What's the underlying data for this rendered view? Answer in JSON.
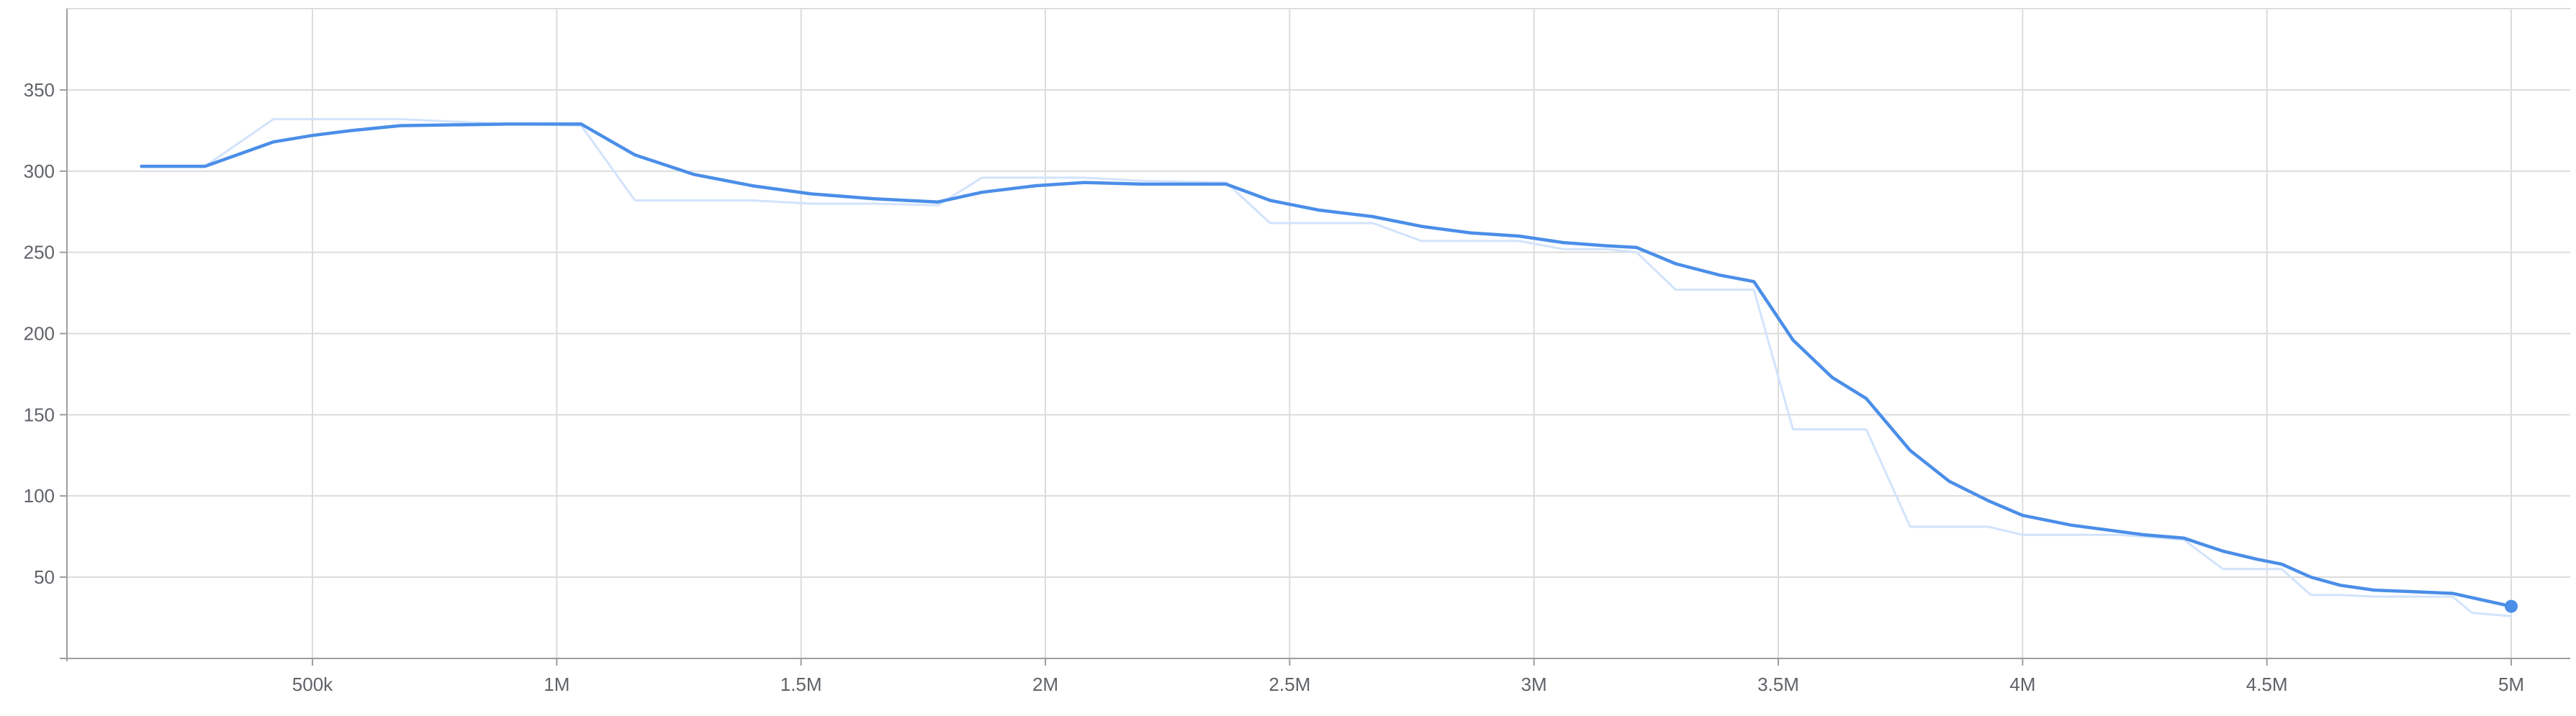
{
  "chart_data": {
    "type": "line",
    "title": "",
    "xlabel": "",
    "ylabel": "",
    "xlim": [
      -500000,
      5130000
    ],
    "ylim": [
      -5,
      400
    ],
    "grid": true,
    "legend": "none",
    "x_ticks": [
      {
        "value": 500000,
        "label": "500k"
      },
      {
        "value": 1000000,
        "label": "1M"
      },
      {
        "value": 1500000,
        "label": "1.5M"
      },
      {
        "value": 2000000,
        "label": "2M"
      },
      {
        "value": 2500000,
        "label": "2.5M"
      },
      {
        "value": 3000000,
        "label": "3M"
      },
      {
        "value": 3500000,
        "label": "3.5M"
      },
      {
        "value": 4000000,
        "label": "4M"
      },
      {
        "value": 4500000,
        "label": "4.5M"
      },
      {
        "value": 5000000,
        "label": "5M"
      }
    ],
    "y_ticks": [
      {
        "value": 50,
        "label": "50"
      },
      {
        "value": 100,
        "label": "100"
      },
      {
        "value": 150,
        "label": "150"
      },
      {
        "value": 200,
        "label": "200"
      },
      {
        "value": 250,
        "label": "250"
      },
      {
        "value": 300,
        "label": "300"
      },
      {
        "value": 350,
        "label": "350"
      }
    ],
    "colors": {
      "smoothed": "#4a8ee8",
      "raw": "#d2e3fc",
      "grid": "#dcdcdc",
      "axis": "#9e9e9e",
      "tick_text": "#5f6368"
    },
    "series": [
      {
        "key": "raw",
        "x": [
          150000,
          280000,
          420000,
          500000,
          580000,
          680000,
          900000,
          1050000,
          1160000,
          1280000,
          1400000,
          1520000,
          1650000,
          1780000,
          1870000,
          1980000,
          2080000,
          2200000,
          2370000,
          2460000,
          2560000,
          2670000,
          2770000,
          2870000,
          2970000,
          3060000,
          3150000,
          3210000,
          3290000,
          3380000,
          3450000,
          3530000,
          3610000,
          3680000,
          3770000,
          3850000,
          3930000,
          4000000,
          4100000,
          4200000,
          4330000,
          4410000,
          4530000,
          4590000,
          4650000,
          4720000,
          4880000,
          4920000,
          5000000
        ],
        "y": [
          303,
          303,
          332,
          332,
          332,
          332,
          329,
          328,
          282,
          282,
          282,
          280,
          280,
          279,
          296,
          296,
          296,
          294,
          293,
          268,
          268,
          268,
          257,
          257,
          257,
          252,
          252,
          250,
          227,
          227,
          227,
          141,
          141,
          141,
          81,
          81,
          81,
          76,
          76,
          76,
          73,
          55,
          55,
          39,
          39,
          38,
          38,
          28,
          26
        ]
      },
      {
        "key": "smoothed",
        "x": [
          150000,
          280000,
          420000,
          500000,
          580000,
          680000,
          900000,
          1050000,
          1160000,
          1280000,
          1400000,
          1520000,
          1650000,
          1780000,
          1870000,
          1980000,
          2080000,
          2200000,
          2370000,
          2460000,
          2560000,
          2670000,
          2770000,
          2870000,
          2970000,
          3060000,
          3150000,
          3210000,
          3290000,
          3380000,
          3450000,
          3530000,
          3610000,
          3680000,
          3770000,
          3850000,
          3930000,
          4000000,
          4100000,
          4200000,
          4250000,
          4330000,
          4410000,
          4480000,
          4530000,
          4590000,
          4650000,
          4720000,
          4800000,
          4880000,
          5000000
        ],
        "y": [
          303,
          303,
          318,
          322,
          325,
          328,
          329,
          329,
          310,
          298,
          291,
          286,
          283,
          281,
          287,
          291,
          293,
          292,
          292,
          282,
          276,
          272,
          266,
          262,
          260,
          256,
          254,
          253,
          243,
          236,
          232,
          196,
          173,
          160,
          128,
          109,
          97,
          88,
          82,
          78,
          76,
          74,
          66,
          61,
          58,
          50,
          45,
          42,
          41,
          40,
          32
        ]
      }
    ],
    "end_marker": {
      "x": 5000000,
      "y": 32
    }
  }
}
